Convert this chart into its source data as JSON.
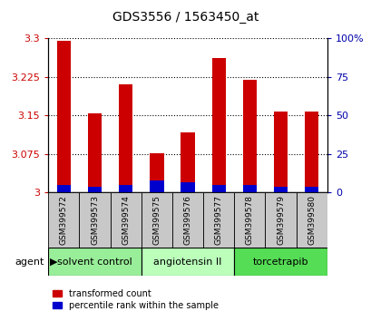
{
  "title": "GDS3556 / 1563450_at",
  "samples": [
    "GSM399572",
    "GSM399573",
    "GSM399574",
    "GSM399575",
    "GSM399576",
    "GSM399577",
    "GSM399578",
    "GSM399579",
    "GSM399580"
  ],
  "transformed_counts": [
    3.295,
    3.155,
    3.21,
    3.077,
    3.118,
    3.262,
    3.22,
    3.158,
    3.158
  ],
  "percentile_ranks": [
    5,
    4,
    5,
    8,
    7,
    5,
    5,
    4,
    4
  ],
  "ylim_left": [
    3.0,
    3.3
  ],
  "yticks_left": [
    3.0,
    3.075,
    3.15,
    3.225,
    3.3
  ],
  "ytick_labels_left": [
    "3",
    "3.075",
    "3.15",
    "3.225",
    "3.3"
  ],
  "ylim_right": [
    0,
    100
  ],
  "yticks_right": [
    0,
    25,
    50,
    75,
    100
  ],
  "ytick_labels_right": [
    "0",
    "25",
    "50",
    "75",
    "100%"
  ],
  "bar_color_red": "#CC0000",
  "bar_color_blue": "#0000CC",
  "bar_width": 0.45,
  "groups": [
    {
      "label": "solvent control",
      "samples": [
        0,
        1,
        2
      ],
      "color": "#99EE99"
    },
    {
      "label": "angiotensin II",
      "samples": [
        3,
        4,
        5
      ],
      "color": "#BBFFBB"
    },
    {
      "label": "torcetrapib",
      "samples": [
        6,
        7,
        8
      ],
      "color": "#55DD55"
    }
  ],
  "agent_label": "agent",
  "legend_items": [
    {
      "label": "transformed count",
      "color": "#CC0000"
    },
    {
      "label": "percentile rank within the sample",
      "color": "#0000CC"
    }
  ],
  "plot_bg": "#FFFFFF",
  "sample_box_color": "#C8C8C8",
  "left_tick_color": "#CC0000",
  "right_tick_color": "#0000AA",
  "title_fontsize": 10
}
